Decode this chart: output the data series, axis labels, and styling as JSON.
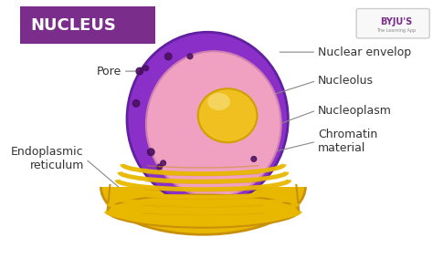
{
  "title": "NUCLEUS",
  "title_bg_color": "#7B2D8B",
  "title_text_color": "#FFFFFF",
  "background_color": "#FFFFFF",
  "labels": {
    "pore": "Pore",
    "nuclear_envelop": "Nuclear envelop",
    "nucleolus": "Nucleolus",
    "nucleoplasm": "Nucleoplasm",
    "chromatin_material": "Chromatin\nmaterial",
    "endoplasmic_reticulum": "Endoplasmic\nreticulum"
  },
  "colors": {
    "outer_shell": "#E8B800",
    "outer_shell_dark": "#C8900A",
    "nuclear_envelope_outer": "#8B2FC9",
    "nuclear_envelope_inner": "#C060D0",
    "nucleoplasm": "#F0A0C0",
    "nucleoplasm_inner": "#F8C0D8",
    "nucleolus": "#F0C020",
    "nucleolus_highlight": "#F8E080",
    "dots": "#4A1060",
    "line_color": "#888888",
    "byju_bg": "#7B2D8B"
  },
  "byju_text": "BYJU'S",
  "byju_subtext": "The Learning App",
  "label_fontsize": 9,
  "title_fontsize": 13
}
